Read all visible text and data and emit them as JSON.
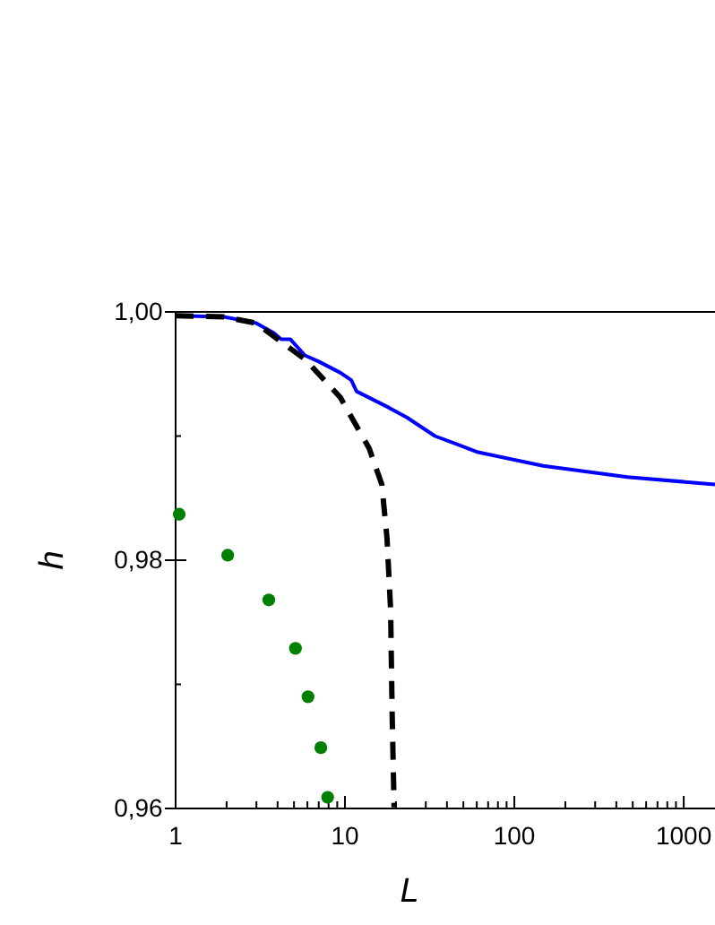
{
  "chart_data": {
    "type": "line",
    "xlabel": "L",
    "ylabel": "h",
    "log": "x",
    "xlim": [
      1,
      1530
    ],
    "ylim": [
      0.96,
      1.0
    ],
    "xticks": [
      1,
      {
        "value": 2,
        "label": null
      },
      {
        "value": 3,
        "label": null
      },
      {
        "value": 4,
        "label": null
      },
      {
        "value": 5,
        "label": null
      },
      {
        "value": 6,
        "label": null
      },
      {
        "value": 7,
        "label": null
      },
      {
        "value": 8,
        "label": null
      },
      {
        "value": 9,
        "label": null
      },
      10,
      {
        "value": 20,
        "label": null
      },
      {
        "value": 30,
        "label": null
      },
      {
        "value": 40,
        "label": null
      },
      {
        "value": 50,
        "label": null
      },
      {
        "value": 60,
        "label": null
      },
      {
        "value": 70,
        "label": null
      },
      {
        "value": 80,
        "label": null
      },
      {
        "value": 90,
        "label": null
      },
      100,
      {
        "value": 200,
        "label": null
      },
      {
        "value": 300,
        "label": null
      },
      {
        "value": 400,
        "label": null
      },
      {
        "value": 500,
        "label": null
      },
      {
        "value": 600,
        "label": null
      },
      {
        "value": 700,
        "label": null
      },
      {
        "value": 800,
        "label": null
      },
      {
        "value": 900,
        "label": null
      },
      1000
    ],
    "yticks": [
      {
        "value": 0.96,
        "label": "0,96"
      },
      {
        "value": 0.97,
        "label": null
      },
      {
        "value": 0.98,
        "label": "0,98"
      },
      {
        "value": 0.99,
        "label": null
      },
      {
        "value": 1.0,
        "label": "1,00"
      }
    ],
    "grid": false,
    "series": [
      {
        "color": "#0000ff",
        "line_style": "solid",
        "x": [
          1,
          1.93,
          2.99,
          3.8,
          4.2,
          4.75,
          5.8,
          7.0,
          9.4,
          10.9,
          11.7,
          18.1,
          23.2,
          34,
          61,
          148,
          465,
          1530
        ],
        "values": [
          0.9997,
          0.9996,
          0.9991,
          0.9983,
          0.9978,
          0.9978,
          0.9965,
          0.996,
          0.9951,
          0.9945,
          0.9936,
          0.9923,
          0.9915,
          0.99,
          0.9887,
          0.9876,
          0.9867,
          0.9861
        ]
      },
      {
        "color": "#000000",
        "line_style": "dashed",
        "x": [
          1,
          1.93,
          2.99,
          4.0,
          5.8,
          9.4,
          13.9,
          16.5,
          17.7,
          18.6,
          19.0,
          19.5
        ],
        "values": [
          0.9997,
          0.9996,
          0.9991,
          0.9978,
          0.9962,
          0.9931,
          0.989,
          0.9861,
          0.9818,
          0.976,
          0.9674,
          0.9601
        ]
      },
      {
        "type": "scatter",
        "marker": "circle",
        "color": "#008000",
        "x": [
          1.05,
          2.03,
          3.55,
          5.1,
          6.05,
          7.2,
          7.9
        ],
        "values": [
          0.9837,
          0.9804,
          0.9768,
          0.9729,
          0.969,
          0.9649,
          0.9609
        ]
      }
    ]
  }
}
